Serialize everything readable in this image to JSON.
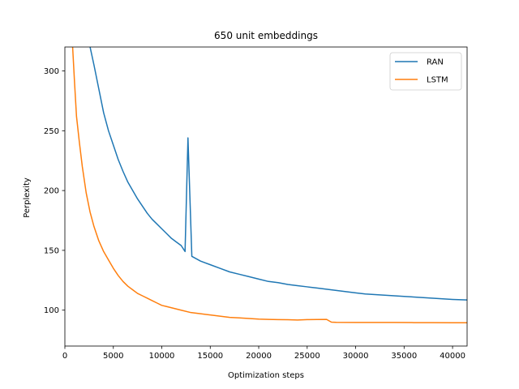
{
  "chart_data": {
    "type": "line",
    "title": "650 unit embeddings",
    "xlabel": "Optimization steps",
    "ylabel": "Perplexity",
    "xlim": [
      0,
      41500
    ],
    "ylim": [
      70,
      320
    ],
    "xticks": [
      0,
      5000,
      10000,
      15000,
      20000,
      25000,
      30000,
      35000,
      40000
    ],
    "yticks": [
      100,
      150,
      200,
      250,
      300
    ],
    "grid": false,
    "legend_position": "top-right",
    "series": [
      {
        "name": "RAN",
        "color": "#1f77b4",
        "points": [
          [
            2600,
            320
          ],
          [
            3000,
            305
          ],
          [
            3500,
            285
          ],
          [
            4000,
            265
          ],
          [
            4500,
            250
          ],
          [
            5000,
            238
          ],
          [
            5500,
            226
          ],
          [
            6000,
            216
          ],
          [
            6500,
            207
          ],
          [
            7000,
            200
          ],
          [
            7500,
            193
          ],
          [
            8000,
            187
          ],
          [
            8500,
            181
          ],
          [
            9000,
            176
          ],
          [
            9500,
            172
          ],
          [
            10000,
            168
          ],
          [
            10500,
            164
          ],
          [
            11000,
            160
          ],
          [
            11500,
            157
          ],
          [
            12000,
            154
          ],
          [
            12400,
            149
          ],
          [
            12700,
            244
          ],
          [
            13100,
            145
          ],
          [
            14000,
            141
          ],
          [
            15000,
            138
          ],
          [
            16000,
            135
          ],
          [
            17000,
            132
          ],
          [
            18000,
            130
          ],
          [
            19000,
            128
          ],
          [
            20000,
            126
          ],
          [
            21000,
            124
          ],
          [
            22000,
            123
          ],
          [
            23000,
            121.5
          ],
          [
            24000,
            120.5
          ],
          [
            25000,
            119.5
          ],
          [
            26000,
            118.5
          ],
          [
            27000,
            117.5
          ],
          [
            28000,
            116.5
          ],
          [
            29000,
            115.5
          ],
          [
            30000,
            114.5
          ],
          [
            31000,
            113.5
          ],
          [
            32000,
            113
          ],
          [
            33000,
            112.5
          ],
          [
            34000,
            112
          ],
          [
            35000,
            111.5
          ],
          [
            36000,
            111
          ],
          [
            37000,
            110.5
          ],
          [
            38000,
            110
          ],
          [
            39000,
            109.5
          ],
          [
            40000,
            109
          ],
          [
            41500,
            108.5
          ]
        ]
      },
      {
        "name": "LSTM",
        "color": "#ff7f0e",
        "points": [
          [
            800,
            320
          ],
          [
            1000,
            290
          ],
          [
            1200,
            262
          ],
          [
            1500,
            240
          ],
          [
            1800,
            220
          ],
          [
            2200,
            198
          ],
          [
            2600,
            182
          ],
          [
            3000,
            170
          ],
          [
            3500,
            158
          ],
          [
            4000,
            149
          ],
          [
            4500,
            142
          ],
          [
            5000,
            135
          ],
          [
            5500,
            129
          ],
          [
            6000,
            124
          ],
          [
            6500,
            120
          ],
          [
            7000,
            117
          ],
          [
            7500,
            114
          ],
          [
            8000,
            112
          ],
          [
            8500,
            110
          ],
          [
            9000,
            108
          ],
          [
            9500,
            106
          ],
          [
            10000,
            104
          ],
          [
            10500,
            103
          ],
          [
            11000,
            102
          ],
          [
            11500,
            101
          ],
          [
            12000,
            100
          ],
          [
            13000,
            98
          ],
          [
            14000,
            97
          ],
          [
            15000,
            96
          ],
          [
            16000,
            95
          ],
          [
            17000,
            94
          ],
          [
            18000,
            93.5
          ],
          [
            19000,
            93
          ],
          [
            20000,
            92.5
          ],
          [
            21000,
            92.3
          ],
          [
            22000,
            92.1
          ],
          [
            23000,
            92
          ],
          [
            24000,
            91.8
          ],
          [
            25000,
            92.1
          ],
          [
            26000,
            92.2
          ],
          [
            27000,
            92.3
          ],
          [
            27500,
            90
          ],
          [
            28000,
            89.8
          ],
          [
            30000,
            89.7
          ],
          [
            32000,
            89.7
          ],
          [
            34000,
            89.7
          ],
          [
            36000,
            89.6
          ],
          [
            38000,
            89.6
          ],
          [
            40000,
            89.5
          ],
          [
            41500,
            89.5
          ]
        ]
      }
    ]
  }
}
